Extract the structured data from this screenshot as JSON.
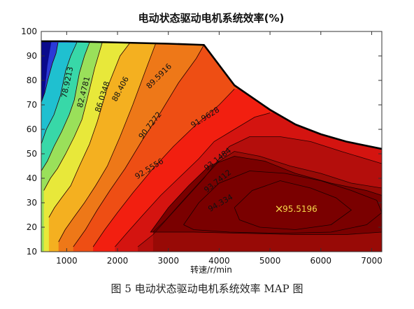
{
  "caption": "图 5 电动状态驱动电机系统效率 MAP 图",
  "chart_data": {
    "type": "contour",
    "title": "电动状态驱动电机系统效率(%)",
    "xlabel": "转速/r/min",
    "ylabel": "",
    "xlim": [
      500,
      7200
    ],
    "ylim": [
      10,
      100
    ],
    "xticks": [
      1000,
      2000,
      3000,
      4000,
      5000,
      6000,
      7000
    ],
    "yticks": [
      10,
      20,
      30,
      40,
      50,
      60,
      70,
      80,
      90,
      100
    ],
    "grid": false,
    "max_torque_envelope": [
      [
        500,
        96
      ],
      [
        1000,
        96
      ],
      [
        2000,
        95.5
      ],
      [
        3000,
        95
      ],
      [
        3700,
        94.5
      ],
      [
        4300,
        78
      ],
      [
        5000,
        68
      ],
      [
        5500,
        62
      ],
      [
        6000,
        58
      ],
      [
        6500,
        55
      ],
      [
        7200,
        52
      ]
    ],
    "contour_levels": [
      {
        "value": 76.5,
        "color": "#1fc0d0"
      },
      {
        "value": 78.9213,
        "color": "#38d8a8"
      },
      {
        "value": 82.4781,
        "color": "#9ae05a"
      },
      {
        "value": 86.0348,
        "color": "#e8e83a"
      },
      {
        "value": 88.406,
        "color": "#f4b020"
      },
      {
        "value": 89.5916,
        "color": "#ee7818"
      },
      {
        "value": 90.7272,
        "color": "#ee4e14"
      },
      {
        "value": 91.9628,
        "color": "#f21f10"
      },
      {
        "value": 92.5556,
        "color": "#d41410"
      },
      {
        "value": 93.1484,
        "color": "#b40e0c"
      },
      {
        "value": 93.7412,
        "color": "#980a06"
      },
      {
        "value": 94.334,
        "color": "#7a0000"
      }
    ],
    "region_boundaries": [
      {
        "level": 76.5,
        "points": [
          [
            500,
            71
          ],
          [
            570,
            75
          ],
          [
            640,
            81
          ],
          [
            720,
            87
          ],
          [
            790,
            91
          ],
          [
            830,
            95.5
          ]
        ]
      },
      {
        "level": 78.9213,
        "points": [
          [
            500,
            54
          ],
          [
            600,
            60
          ],
          [
            750,
            66
          ],
          [
            880,
            74
          ],
          [
            980,
            84
          ],
          [
            1080,
            90
          ],
          [
            1200,
            95.5
          ]
        ]
      },
      {
        "level": 82.4781,
        "points": [
          [
            500,
            43
          ],
          [
            620,
            47
          ],
          [
            750,
            53
          ],
          [
            900,
            59
          ],
          [
            1050,
            66
          ],
          [
            1150,
            72
          ],
          [
            1250,
            83
          ],
          [
            1350,
            90
          ],
          [
            1450,
            95.5
          ]
        ]
      },
      {
        "level": 86.0348,
        "points": [
          [
            550,
            35
          ],
          [
            680,
            40
          ],
          [
            820,
            44
          ],
          [
            980,
            50
          ],
          [
            1150,
            57
          ],
          [
            1300,
            64
          ],
          [
            1400,
            72
          ],
          [
            1550,
            85
          ],
          [
            1700,
            95.5
          ]
        ]
      },
      {
        "level": 88.406,
        "points": [
          [
            650,
            24
          ],
          [
            760,
            28
          ],
          [
            900,
            32
          ],
          [
            1080,
            37
          ],
          [
            1250,
            45
          ],
          [
            1450,
            54
          ],
          [
            1600,
            63
          ],
          [
            1800,
            77
          ],
          [
            2050,
            90
          ],
          [
            2250,
            95.5
          ]
        ]
      },
      {
        "level": 89.5916,
        "points": [
          [
            840,
            14
          ],
          [
            970,
            19
          ],
          [
            1140,
            24
          ],
          [
            1350,
            30
          ],
          [
            1570,
            37
          ],
          [
            1800,
            45
          ],
          [
            2050,
            57
          ],
          [
            2300,
            70
          ],
          [
            2550,
            84
          ],
          [
            2750,
            95
          ]
        ]
      },
      {
        "level": 90.7272,
        "points": [
          [
            1130,
            12
          ],
          [
            1370,
            19
          ],
          [
            1600,
            27
          ],
          [
            1850,
            35
          ],
          [
            2150,
            44
          ],
          [
            2500,
            56
          ],
          [
            2850,
            67
          ],
          [
            3200,
            79
          ],
          [
            3550,
            89
          ],
          [
            3700,
            94.5
          ]
        ]
      },
      {
        "level": 91.9628,
        "points": [
          [
            1520,
            12
          ],
          [
            1750,
            19
          ],
          [
            2000,
            26
          ],
          [
            2300,
            34
          ],
          [
            2700,
            44
          ],
          [
            3100,
            53
          ],
          [
            3550,
            62
          ],
          [
            4000,
            70
          ],
          [
            4300,
            76.5
          ]
        ]
      },
      {
        "level": 92.5556,
        "points": [
          [
            1950,
            12
          ],
          [
            2200,
            18
          ],
          [
            2500,
            25
          ],
          [
            2850,
            33
          ],
          [
            3200,
            40
          ],
          [
            3600,
            48
          ],
          [
            3900,
            55
          ],
          [
            4300,
            60
          ],
          [
            4700,
            65
          ],
          [
            5000,
            66.7
          ]
        ]
      },
      {
        "level": 93.1484,
        "points": [
          [
            2400,
            12
          ],
          [
            2700,
            17
          ],
          [
            3000,
            24
          ],
          [
            3350,
            32
          ],
          [
            3700,
            40
          ],
          [
            4000,
            48
          ],
          [
            4200,
            53
          ],
          [
            4600,
            57
          ],
          [
            5200,
            57
          ],
          [
            5800,
            55
          ],
          [
            6400,
            51
          ],
          [
            7200,
            46
          ]
        ]
      },
      {
        "level": 93.7412,
        "points": [
          [
            2700,
            18
          ],
          [
            2950,
            23
          ],
          [
            3250,
            30
          ],
          [
            3600,
            38
          ],
          [
            4000,
            47
          ],
          [
            4300,
            51
          ],
          [
            4800,
            49
          ],
          [
            5400,
            45
          ],
          [
            6000,
            42
          ],
          [
            6600,
            38
          ],
          [
            7200,
            36
          ]
        ]
      }
    ],
    "core_region": {
      "level": 94.334,
      "points": [
        [
          2650,
          18
        ],
        [
          3000,
          28
        ],
        [
          3400,
          37
        ],
        [
          3800,
          45
        ],
        [
          4300,
          49
        ],
        [
          4900,
          47
        ],
        [
          5500,
          42
        ],
        [
          6200,
          38
        ],
        [
          6900,
          35
        ],
        [
          7200,
          33
        ],
        [
          7200,
          18
        ],
        [
          6500,
          17
        ],
        [
          5500,
          17
        ],
        [
          4500,
          17.5
        ],
        [
          3500,
          18
        ]
      ]
    },
    "inner_contours": [
      {
        "level": 95.2,
        "points": [
          [
            4300,
            28
          ],
          [
            4650,
            35
          ],
          [
            5200,
            39
          ],
          [
            5800,
            36
          ],
          [
            6300,
            32
          ],
          [
            6600,
            27
          ],
          [
            6200,
            21
          ],
          [
            5500,
            19
          ],
          [
            4800,
            20
          ],
          [
            4400,
            23
          ],
          [
            4300,
            28
          ]
        ]
      },
      {
        "level": 94.8,
        "points": [
          [
            3300,
            21
          ],
          [
            3600,
            30
          ],
          [
            4000,
            38
          ],
          [
            4600,
            43
          ],
          [
            5300,
            42
          ],
          [
            6000,
            39
          ],
          [
            6600,
            35
          ],
          [
            7100,
            31
          ],
          [
            7200,
            26
          ],
          [
            6900,
            21
          ],
          [
            6200,
            18
          ],
          [
            5200,
            17.5
          ],
          [
            4200,
            18
          ],
          [
            3500,
            19
          ],
          [
            3300,
            21
          ]
        ]
      }
    ],
    "contour_labels": [
      {
        "text": "78.9213",
        "x": 1060,
        "y": 79,
        "angle": -78
      },
      {
        "text": "82.4781",
        "x": 1380,
        "y": 75,
        "angle": -76
      },
      {
        "text": "86.0348",
        "x": 1750,
        "y": 73,
        "angle": -72
      },
      {
        "text": "88.406",
        "x": 2100,
        "y": 76,
        "angle": -62
      },
      {
        "text": "89.5916",
        "x": 2850,
        "y": 81,
        "angle": -45
      },
      {
        "text": "90.7272",
        "x": 2680,
        "y": 61,
        "angle": -52
      },
      {
        "text": "91.9628",
        "x": 3750,
        "y": 64,
        "angle": -32
      },
      {
        "text": "92.5556",
        "x": 2650,
        "y": 43,
        "angle": -32
      },
      {
        "text": "93.1484",
        "x": 4000,
        "y": 47,
        "angle": -38
      },
      {
        "text": "93.7412",
        "x": 4000,
        "y": 38,
        "angle": -38
      },
      {
        "text": "94.334",
        "x": 4050,
        "y": 29,
        "angle": -30
      }
    ],
    "peak": {
      "x": 5180,
      "y": 27.5,
      "label": "95.5196"
    }
  }
}
